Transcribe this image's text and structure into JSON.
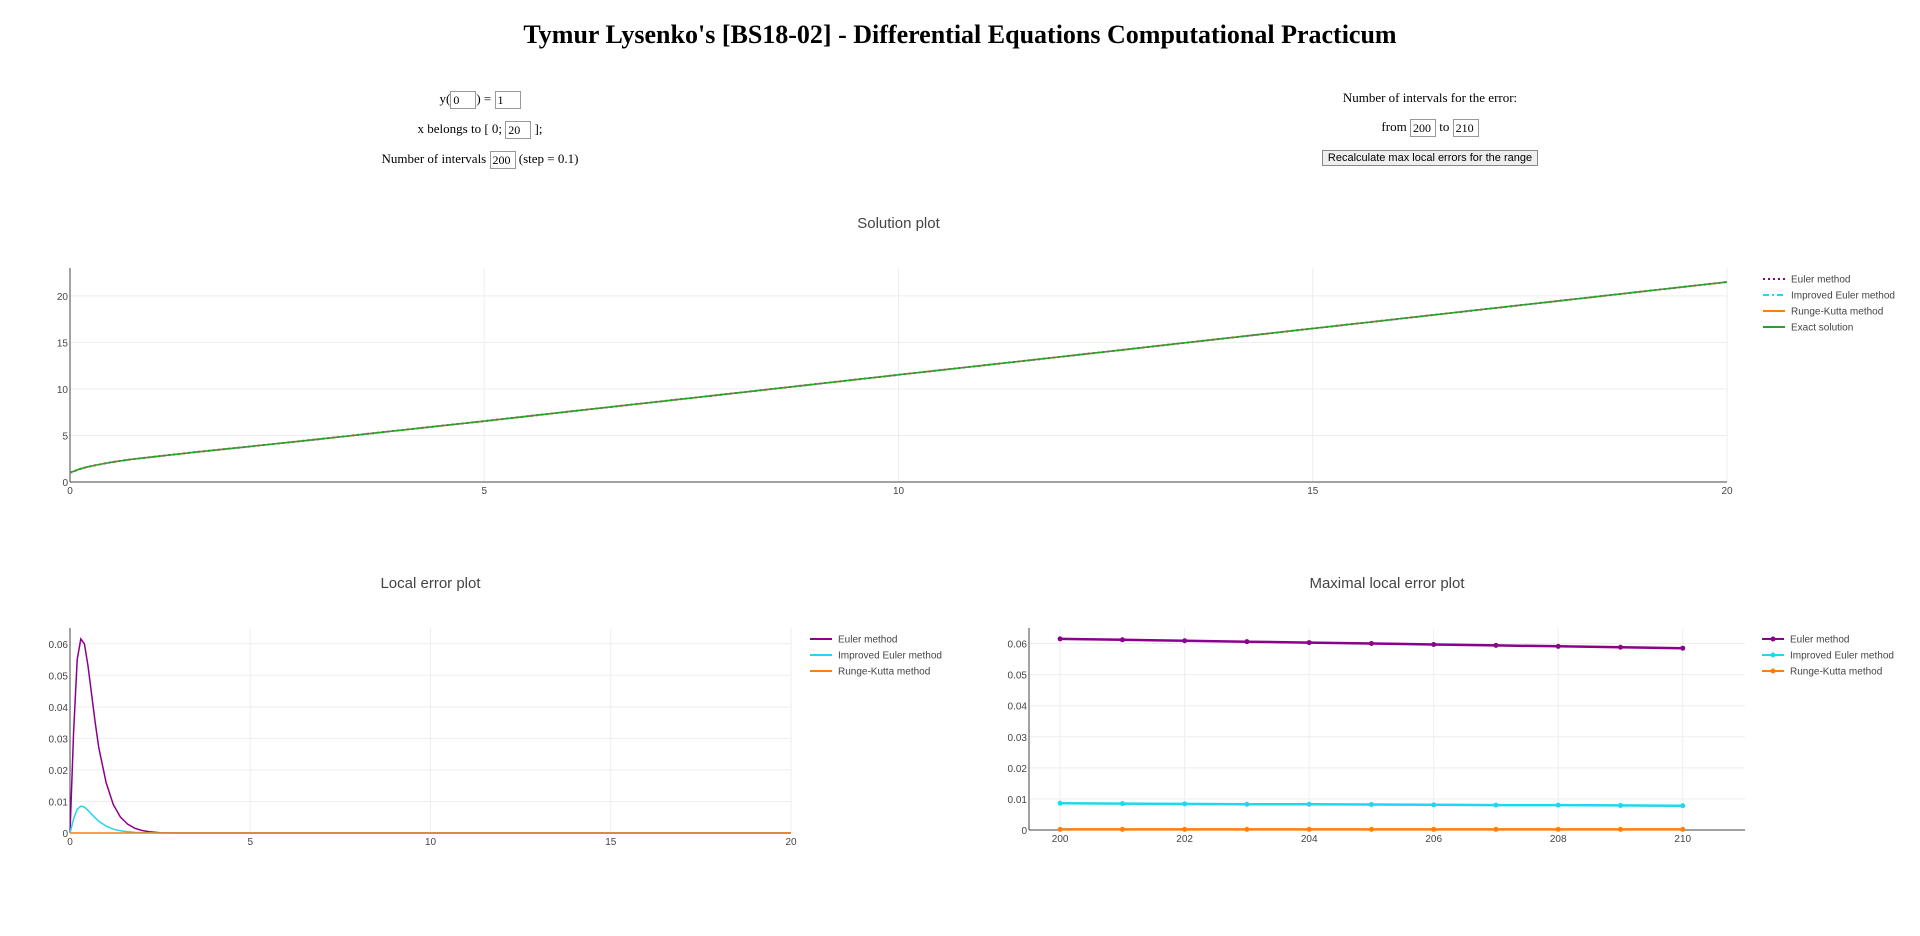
{
  "page": {
    "title": "Tymur Lysenko's [BS18-02] - Differential Equations Computational Practicum"
  },
  "controls": {
    "y_prefix": "y(",
    "y_mid": ") =",
    "x0_value": "0",
    "y0_value": "1",
    "x_prefix": "x belongs to [",
    "x_mid": "0;",
    "x_suffix": "];",
    "X_value": "20",
    "intervals_prefix": "Number of intervals",
    "intervals_value": "200",
    "step_text": "(step = 0.1)",
    "error_title": "Number of intervals for the error:",
    "from_label": "from",
    "to_label": "to",
    "from_value": "200",
    "to_value": "210",
    "recalc_button": "Recalculate max local errors for the range"
  },
  "colors": {
    "euler": "#8b008b",
    "improved": "#1fd7f0",
    "rk": "#ff7f0e",
    "exact": "#2ca02c",
    "grid": "#eeeeee",
    "axis": "#444444"
  },
  "chart_data": [
    {
      "type": "line",
      "title": "Solution plot",
      "xlim": [
        0,
        20
      ],
      "ylim": [
        0,
        23
      ],
      "xticks": [
        0,
        5,
        10,
        15,
        20
      ],
      "yticks": [
        0,
        5,
        10,
        15,
        20
      ],
      "grid": true,
      "legend": "top-right",
      "x": [
        0,
        0.1,
        0.2,
        0.3,
        0.5,
        0.75,
        1,
        1.5,
        2,
        3,
        4,
        5,
        6,
        7,
        8,
        9,
        10,
        12,
        14,
        16,
        18,
        20
      ],
      "series": [
        {
          "name": "Euler method",
          "style": "dotted",
          "values": [
            1,
            1.34,
            1.6,
            1.8,
            2.13,
            2.45,
            2.7,
            3.2,
            3.65,
            4.6,
            5.58,
            6.55,
            7.54,
            8.53,
            9.52,
            10.52,
            11.52,
            13.5,
            15.5,
            17.5,
            19.5,
            21.5
          ]
        },
        {
          "name": "Improved Euler method",
          "style": "dashdot",
          "values": [
            1,
            1.34,
            1.6,
            1.8,
            2.13,
            2.45,
            2.7,
            3.2,
            3.65,
            4.6,
            5.58,
            6.55,
            7.54,
            8.53,
            9.52,
            10.52,
            11.52,
            13.5,
            15.5,
            17.5,
            19.5,
            21.5
          ]
        },
        {
          "name": "Runge-Kutta method",
          "style": "solid",
          "values": [
            1,
            1.34,
            1.6,
            1.8,
            2.13,
            2.45,
            2.7,
            3.2,
            3.65,
            4.6,
            5.58,
            6.55,
            7.54,
            8.53,
            9.52,
            10.52,
            11.52,
            13.5,
            15.5,
            17.5,
            19.5,
            21.5
          ]
        },
        {
          "name": "Exact solution",
          "style": "solid",
          "values": [
            1,
            1.34,
            1.6,
            1.8,
            2.13,
            2.45,
            2.7,
            3.2,
            3.65,
            4.6,
            5.58,
            6.55,
            7.54,
            8.53,
            9.52,
            10.52,
            11.52,
            13.5,
            15.5,
            17.5,
            19.5,
            21.5
          ]
        }
      ]
    },
    {
      "type": "line",
      "title": "Local error plot",
      "xlim": [
        0,
        20
      ],
      "ylim": [
        0,
        0.065
      ],
      "xticks": [
        0,
        5,
        10,
        15,
        20
      ],
      "yticks": [
        0,
        0.01,
        0.02,
        0.03,
        0.04,
        0.05,
        0.06
      ],
      "grid": true,
      "legend": "top-right",
      "x": [
        0,
        0.1,
        0.2,
        0.3,
        0.4,
        0.5,
        0.6,
        0.7,
        0.8,
        1.0,
        1.2,
        1.4,
        1.6,
        1.8,
        2.0,
        2.2,
        2.5,
        3,
        5,
        10,
        15,
        20
      ],
      "series": [
        {
          "name": "Euler method",
          "values": [
            0,
            0.032,
            0.055,
            0.0615,
            0.06,
            0.053,
            0.044,
            0.035,
            0.027,
            0.016,
            0.009,
            0.005,
            0.0028,
            0.0015,
            0.0008,
            0.0004,
            0.0001,
            0,
            0,
            0,
            0,
            0
          ]
        },
        {
          "name": "Improved Euler method",
          "values": [
            0,
            0.0045,
            0.0075,
            0.0085,
            0.0082,
            0.0072,
            0.006,
            0.0048,
            0.0037,
            0.0022,
            0.0012,
            0.0007,
            0.0004,
            0.0002,
            0.0001,
            5e-05,
            0,
            0,
            0,
            0,
            0,
            0
          ]
        },
        {
          "name": "Runge-Kutta method",
          "values": [
            0,
            0,
            0,
            0,
            0,
            0,
            0,
            0,
            0,
            0,
            0,
            0,
            0,
            0,
            0,
            0,
            0,
            0,
            0,
            0,
            0,
            0
          ]
        }
      ]
    },
    {
      "type": "line",
      "title": "Maximal local error plot",
      "xlim": [
        199.5,
        211
      ],
      "ylim": [
        0,
        0.065
      ],
      "xticks": [
        200,
        202,
        204,
        206,
        208,
        210
      ],
      "yticks": [
        0,
        0.01,
        0.02,
        0.03,
        0.04,
        0.05,
        0.06
      ],
      "grid": true,
      "legend": "top-right",
      "markers": true,
      "x": [
        200,
        201,
        202,
        203,
        204,
        205,
        206,
        207,
        208,
        209,
        210
      ],
      "series": [
        {
          "name": "Euler method",
          "values": [
            0.0615,
            0.0612,
            0.0609,
            0.0606,
            0.0603,
            0.06,
            0.0597,
            0.0594,
            0.0591,
            0.0588,
            0.0585
          ]
        },
        {
          "name": "Improved Euler method",
          "values": [
            0.0086,
            0.0085,
            0.0084,
            0.0083,
            0.0083,
            0.0082,
            0.0081,
            0.008,
            0.008,
            0.0079,
            0.0078
          ]
        },
        {
          "name": "Runge-Kutta method",
          "values": [
            0.0002,
            0.0002,
            0.0002,
            0.0002,
            0.0002,
            0.0002,
            0.0002,
            0.0002,
            0.0002,
            0.0002,
            0.0002
          ]
        }
      ]
    }
  ]
}
